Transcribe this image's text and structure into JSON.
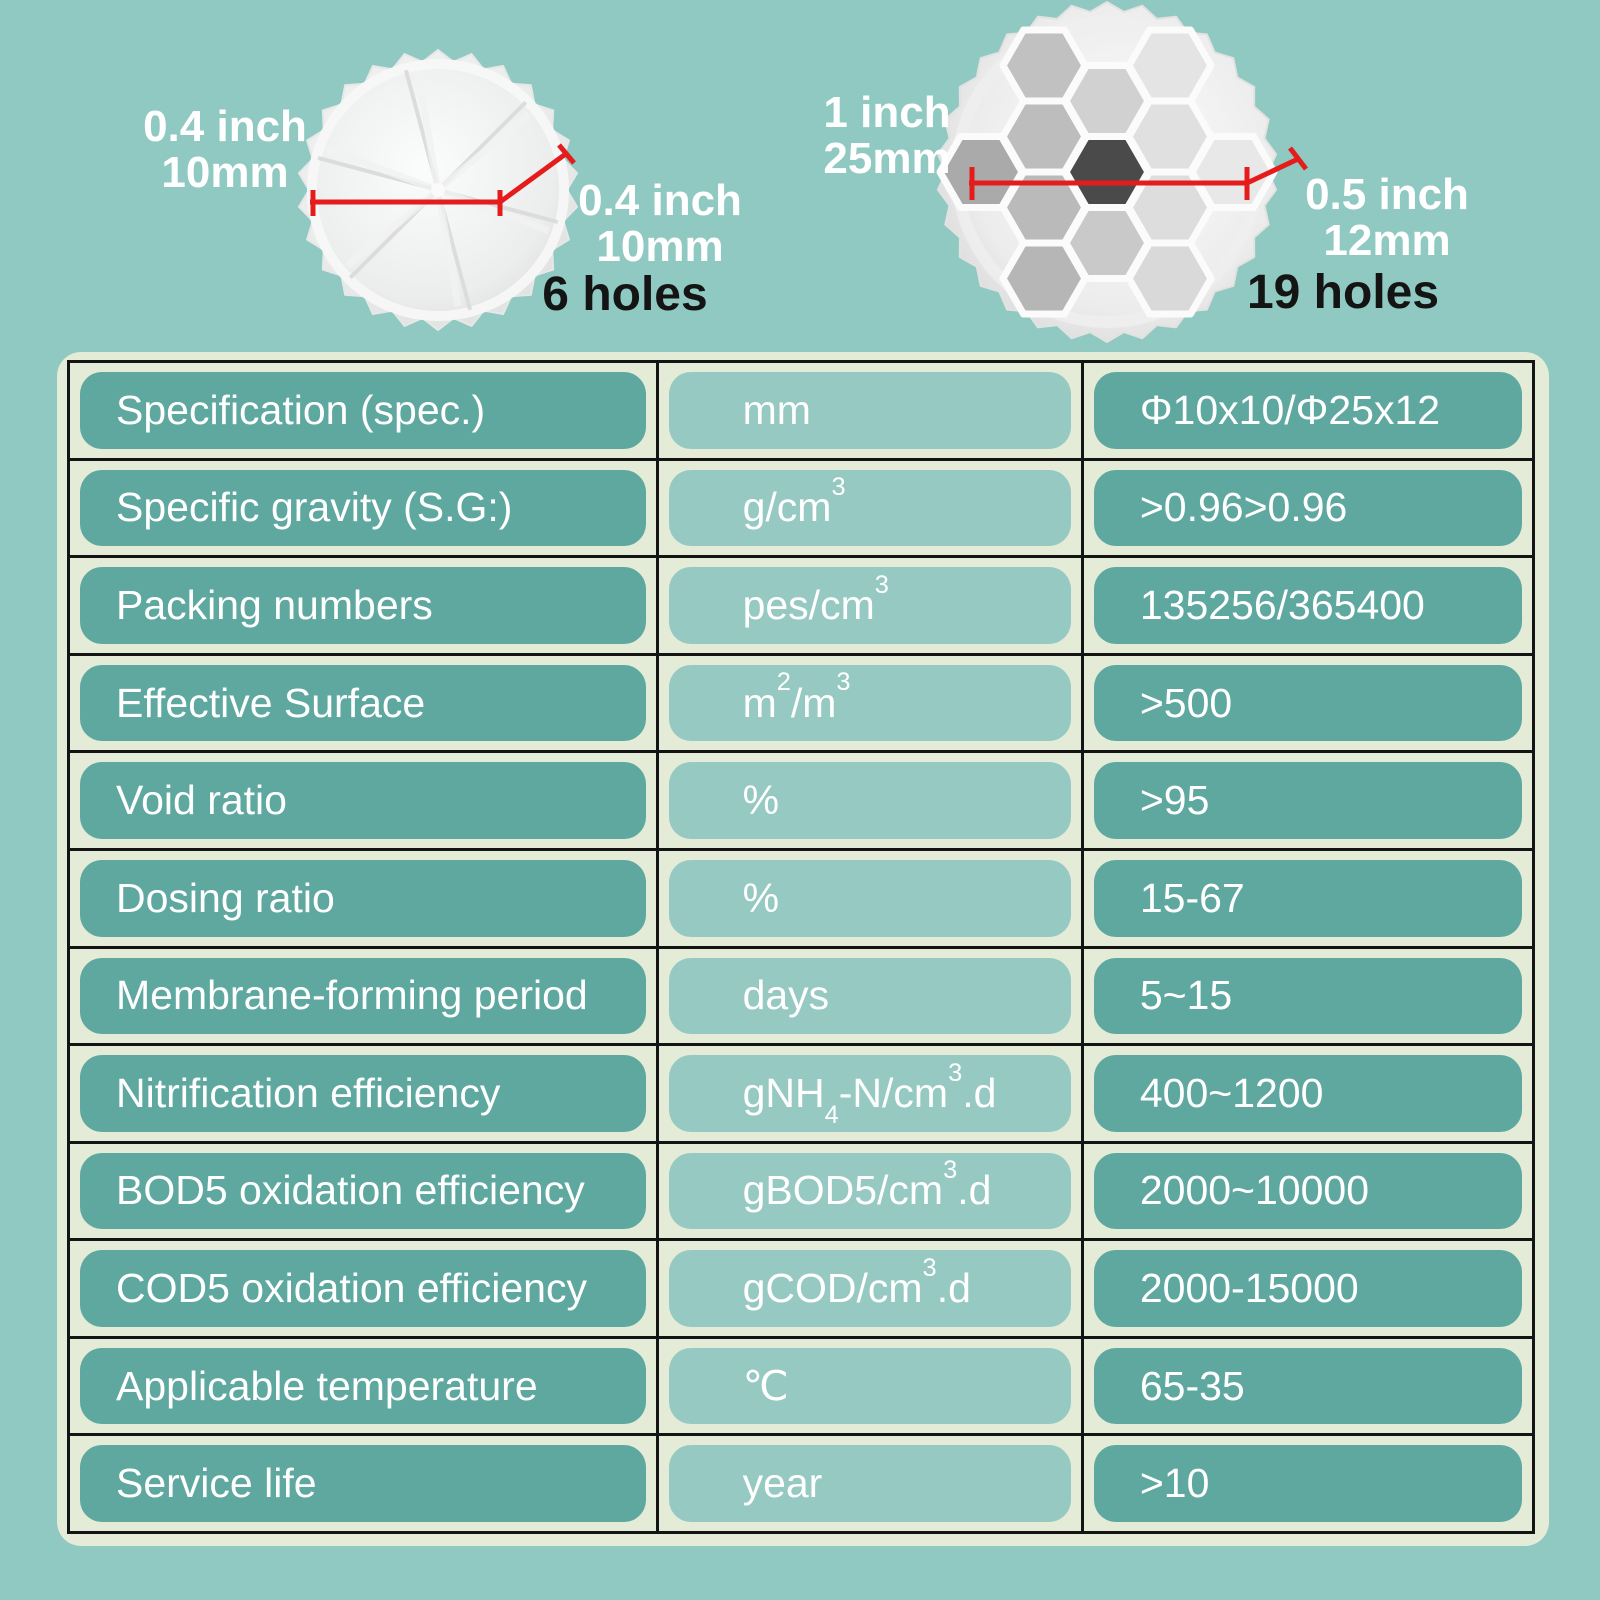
{
  "colors": {
    "background": "#8fc9c1",
    "table_background": "#e4ecd8",
    "pill_dark": "#5ea8a0",
    "pill_light": "#96c9c2",
    "grid_border": "#141414",
    "dimension_line_red": "#e51c1c",
    "text_white": "#ffffff",
    "text_black": "#141414"
  },
  "products": [
    {
      "id": "small-media",
      "icon": "filter-media-6hole-image",
      "diameter_label": {
        "line1": "0.4 inch",
        "line2": "10mm"
      },
      "thickness_label": {
        "line1": "0.4 inch",
        "line2": "10mm"
      },
      "holes_label": "6 holes"
    },
    {
      "id": "large-media",
      "icon": "filter-media-19hole-image",
      "diameter_label": {
        "line1": "1 inch",
        "line2": "25mm"
      },
      "thickness_label": {
        "line1": "0.5 inch",
        "line2": "12mm"
      },
      "holes_label": "19 holes"
    }
  ],
  "table": {
    "rows": [
      {
        "param": "Specification (spec.)",
        "unit": "mm",
        "value": "Φ10x10/Φ25x12"
      },
      {
        "param": "Specific gravity (S.G:)",
        "unit": "g/cm^{3}",
        "value": ">0.96>0.96"
      },
      {
        "param": "Packing numbers",
        "unit": "pes/cm^{3}",
        "value": "135256/365400"
      },
      {
        "param": "Effective Surface",
        "unit": "m^{2}/m^{3}",
        "value": ">500"
      },
      {
        "param": "Void ratio",
        "unit": "%",
        "value": ">95"
      },
      {
        "param": "Dosing ratio",
        "unit": "%",
        "value": "15-67"
      },
      {
        "param": "Membrane-forming period",
        "unit": "days",
        "value": "5~15"
      },
      {
        "param": "Nitrification efficiency",
        "unit": "gNH_{4}-N/cm^{3}.d",
        "value": "400~1200"
      },
      {
        "param": "BOD5 oxidation efficiency",
        "unit": "gBOD5/cm^{3}.d",
        "value": "2000~10000"
      },
      {
        "param": "COD5 oxidation efficiency",
        "unit": "gCOD/cm^{3}.d",
        "value": "2000-15000"
      },
      {
        "param": "Applicable temperature",
        "unit": "℃",
        "value": "65-35"
      },
      {
        "param": "Service life",
        "unit": "year",
        "value": ">10"
      }
    ]
  }
}
